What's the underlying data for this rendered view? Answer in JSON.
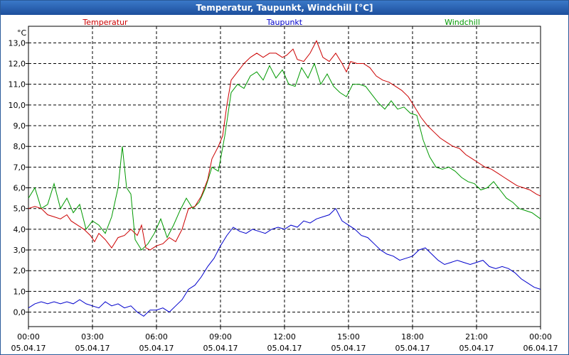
{
  "chart_data": {
    "type": "line",
    "title": "Temperatur, Taupunkt, Windchill [°C]",
    "ylabel": "°C",
    "ylim": [
      -0.7,
      13.8
    ],
    "xlim": [
      0,
      24
    ],
    "grid": true,
    "y_ticks": [
      "0,0",
      "1,0",
      "2,0",
      "3,0",
      "4,0",
      "5,0",
      "6,0",
      "7,0",
      "8,0",
      "9,0",
      "10,0",
      "11,0",
      "12,0",
      "13,0"
    ],
    "x_ticks": [
      {
        "time": "00:00",
        "date": "05.04.17"
      },
      {
        "time": "03:00",
        "date": "05.04.17"
      },
      {
        "time": "06:00",
        "date": "05.04.17"
      },
      {
        "time": "09:00",
        "date": "05.04.17"
      },
      {
        "time": "12:00",
        "date": "05.04.17"
      },
      {
        "time": "15:00",
        "date": "05.04.17"
      },
      {
        "time": "18:00",
        "date": "05.04.17"
      },
      {
        "time": "21:00",
        "date": "05.04.17"
      },
      {
        "time": "00:00",
        "date": "06.04.17"
      }
    ],
    "series": [
      {
        "name": "Temperatur",
        "color": "#cc0000",
        "points": [
          [
            0,
            5.0
          ],
          [
            0.3,
            5.1
          ],
          [
            0.6,
            5.0
          ],
          [
            0.9,
            4.7
          ],
          [
            1.2,
            4.6
          ],
          [
            1.5,
            4.5
          ],
          [
            1.8,
            4.7
          ],
          [
            2.0,
            4.4
          ],
          [
            2.3,
            4.2
          ],
          [
            2.6,
            4.0
          ],
          [
            2.9,
            3.7
          ],
          [
            3.1,
            3.4
          ],
          [
            3.3,
            3.8
          ],
          [
            3.6,
            3.5
          ],
          [
            3.9,
            3.1
          ],
          [
            4.2,
            3.6
          ],
          [
            4.5,
            3.7
          ],
          [
            4.8,
            4.0
          ],
          [
            5.1,
            3.7
          ],
          [
            5.3,
            4.2
          ],
          [
            5.5,
            3.1
          ],
          [
            5.7,
            3.0
          ],
          [
            6.0,
            3.2
          ],
          [
            6.3,
            3.3
          ],
          [
            6.6,
            3.6
          ],
          [
            6.9,
            3.4
          ],
          [
            7.2,
            4.0
          ],
          [
            7.5,
            5.0
          ],
          [
            7.8,
            5.1
          ],
          [
            8.1,
            5.6
          ],
          [
            8.4,
            6.4
          ],
          [
            8.6,
            7.4
          ],
          [
            8.9,
            8.0
          ],
          [
            9.1,
            8.5
          ],
          [
            9.3,
            10.0
          ],
          [
            9.5,
            11.2
          ],
          [
            9.8,
            11.6
          ],
          [
            10.1,
            12.0
          ],
          [
            10.4,
            12.3
          ],
          [
            10.7,
            12.5
          ],
          [
            11.0,
            12.3
          ],
          [
            11.3,
            12.5
          ],
          [
            11.6,
            12.5
          ],
          [
            11.9,
            12.3
          ],
          [
            12.1,
            12.4
          ],
          [
            12.4,
            12.7
          ],
          [
            12.6,
            12.2
          ],
          [
            12.9,
            12.1
          ],
          [
            13.2,
            12.5
          ],
          [
            13.5,
            13.1
          ],
          [
            13.8,
            12.3
          ],
          [
            14.1,
            12.1
          ],
          [
            14.4,
            12.5
          ],
          [
            14.7,
            12.0
          ],
          [
            14.9,
            11.6
          ],
          [
            15.1,
            12.1
          ],
          [
            15.4,
            12.0
          ],
          [
            15.7,
            12.0
          ],
          [
            16.0,
            11.8
          ],
          [
            16.3,
            11.4
          ],
          [
            16.6,
            11.2
          ],
          [
            16.9,
            11.1
          ],
          [
            17.2,
            10.9
          ],
          [
            17.5,
            10.7
          ],
          [
            17.8,
            10.4
          ],
          [
            18.1,
            9.9
          ],
          [
            18.4,
            9.4
          ],
          [
            18.7,
            9.0
          ],
          [
            19.0,
            8.7
          ],
          [
            19.3,
            8.4
          ],
          [
            19.6,
            8.2
          ],
          [
            19.9,
            8.0
          ],
          [
            20.2,
            7.9
          ],
          [
            20.5,
            7.6
          ],
          [
            20.8,
            7.4
          ],
          [
            21.1,
            7.2
          ],
          [
            21.4,
            7.0
          ],
          [
            21.7,
            6.9
          ],
          [
            22.0,
            6.7
          ],
          [
            22.3,
            6.5
          ],
          [
            22.6,
            6.3
          ],
          [
            22.9,
            6.1
          ],
          [
            23.2,
            6.0
          ],
          [
            23.5,
            5.9
          ],
          [
            23.8,
            5.7
          ],
          [
            24.0,
            5.6
          ]
        ]
      },
      {
        "name": "Taupunkt",
        "color": "#0000cc",
        "points": [
          [
            0,
            0.2
          ],
          [
            0.3,
            0.4
          ],
          [
            0.6,
            0.5
          ],
          [
            0.9,
            0.4
          ],
          [
            1.2,
            0.5
          ],
          [
            1.5,
            0.4
          ],
          [
            1.8,
            0.5
          ],
          [
            2.1,
            0.4
          ],
          [
            2.4,
            0.6
          ],
          [
            2.7,
            0.4
          ],
          [
            3.0,
            0.3
          ],
          [
            3.3,
            0.2
          ],
          [
            3.6,
            0.5
          ],
          [
            3.9,
            0.3
          ],
          [
            4.2,
            0.4
          ],
          [
            4.5,
            0.2
          ],
          [
            4.8,
            0.3
          ],
          [
            5.1,
            0.0
          ],
          [
            5.4,
            -0.2
          ],
          [
            5.7,
            0.1
          ],
          [
            6.0,
            0.1
          ],
          [
            6.3,
            0.2
          ],
          [
            6.6,
            0.0
          ],
          [
            6.9,
            0.3
          ],
          [
            7.2,
            0.6
          ],
          [
            7.5,
            1.1
          ],
          [
            7.8,
            1.3
          ],
          [
            8.1,
            1.7
          ],
          [
            8.4,
            2.2
          ],
          [
            8.7,
            2.6
          ],
          [
            9.0,
            3.2
          ],
          [
            9.3,
            3.7
          ],
          [
            9.6,
            4.1
          ],
          [
            9.9,
            3.9
          ],
          [
            10.2,
            3.8
          ],
          [
            10.5,
            4.0
          ],
          [
            10.8,
            3.9
          ],
          [
            11.1,
            3.8
          ],
          [
            11.4,
            4.0
          ],
          [
            11.7,
            4.1
          ],
          [
            12.0,
            4.0
          ],
          [
            12.3,
            4.2
          ],
          [
            12.6,
            4.1
          ],
          [
            12.9,
            4.4
          ],
          [
            13.2,
            4.3
          ],
          [
            13.5,
            4.5
          ],
          [
            13.8,
            4.6
          ],
          [
            14.1,
            4.7
          ],
          [
            14.4,
            5.0
          ],
          [
            14.7,
            4.4
          ],
          [
            15.0,
            4.2
          ],
          [
            15.3,
            4.0
          ],
          [
            15.6,
            3.7
          ],
          [
            15.9,
            3.6
          ],
          [
            16.2,
            3.3
          ],
          [
            16.5,
            3.0
          ],
          [
            16.8,
            2.8
          ],
          [
            17.1,
            2.7
          ],
          [
            17.4,
            2.5
          ],
          [
            17.7,
            2.6
          ],
          [
            18.0,
            2.7
          ],
          [
            18.3,
            3.0
          ],
          [
            18.6,
            3.1
          ],
          [
            18.9,
            2.8
          ],
          [
            19.2,
            2.5
          ],
          [
            19.5,
            2.3
          ],
          [
            19.8,
            2.4
          ],
          [
            20.1,
            2.5
          ],
          [
            20.4,
            2.4
          ],
          [
            20.7,
            2.3
          ],
          [
            21.0,
            2.4
          ],
          [
            21.3,
            2.5
          ],
          [
            21.6,
            2.2
          ],
          [
            21.9,
            2.1
          ],
          [
            22.2,
            2.2
          ],
          [
            22.5,
            2.1
          ],
          [
            22.8,
            1.9
          ],
          [
            23.1,
            1.6
          ],
          [
            23.4,
            1.4
          ],
          [
            23.7,
            1.2
          ],
          [
            24.0,
            1.1
          ]
        ]
      },
      {
        "name": "Windchill",
        "color": "#009900",
        "points": [
          [
            0,
            5.5
          ],
          [
            0.3,
            6.0
          ],
          [
            0.6,
            5.0
          ],
          [
            0.9,
            5.2
          ],
          [
            1.2,
            6.2
          ],
          [
            1.5,
            5.0
          ],
          [
            1.8,
            5.5
          ],
          [
            2.1,
            4.8
          ],
          [
            2.4,
            5.2
          ],
          [
            2.7,
            4.0
          ],
          [
            3.0,
            4.4
          ],
          [
            3.3,
            4.2
          ],
          [
            3.6,
            3.8
          ],
          [
            3.9,
            4.6
          ],
          [
            4.2,
            6.0
          ],
          [
            4.4,
            8.0
          ],
          [
            4.6,
            6.0
          ],
          [
            4.8,
            5.7
          ],
          [
            5.0,
            3.5
          ],
          [
            5.3,
            3.0
          ],
          [
            5.6,
            3.3
          ],
          [
            5.9,
            3.8
          ],
          [
            6.2,
            4.5
          ],
          [
            6.5,
            3.6
          ],
          [
            6.8,
            4.2
          ],
          [
            7.1,
            4.9
          ],
          [
            7.4,
            5.5
          ],
          [
            7.7,
            5.0
          ],
          [
            8.0,
            5.3
          ],
          [
            8.3,
            6.0
          ],
          [
            8.6,
            7.0
          ],
          [
            8.9,
            6.8
          ],
          [
            9.2,
            8.5
          ],
          [
            9.5,
            10.6
          ],
          [
            9.8,
            11.0
          ],
          [
            10.1,
            10.8
          ],
          [
            10.4,
            11.4
          ],
          [
            10.7,
            11.6
          ],
          [
            11.0,
            11.2
          ],
          [
            11.3,
            11.9
          ],
          [
            11.6,
            11.3
          ],
          [
            11.9,
            11.7
          ],
          [
            12.2,
            11.0
          ],
          [
            12.5,
            10.9
          ],
          [
            12.8,
            11.8
          ],
          [
            13.1,
            11.3
          ],
          [
            13.4,
            12.0
          ],
          [
            13.7,
            11.0
          ],
          [
            14.0,
            11.5
          ],
          [
            14.3,
            10.9
          ],
          [
            14.6,
            10.6
          ],
          [
            14.9,
            10.4
          ],
          [
            15.2,
            11.0
          ],
          [
            15.5,
            11.0
          ],
          [
            15.8,
            10.9
          ],
          [
            16.1,
            10.5
          ],
          [
            16.4,
            10.1
          ],
          [
            16.7,
            9.8
          ],
          [
            17.0,
            10.2
          ],
          [
            17.3,
            9.8
          ],
          [
            17.6,
            9.9
          ],
          [
            17.9,
            9.6
          ],
          [
            18.2,
            9.5
          ],
          [
            18.5,
            8.3
          ],
          [
            18.8,
            7.5
          ],
          [
            19.1,
            7.0
          ],
          [
            19.4,
            6.9
          ],
          [
            19.7,
            7.0
          ],
          [
            20.0,
            6.8
          ],
          [
            20.3,
            6.5
          ],
          [
            20.6,
            6.3
          ],
          [
            20.9,
            6.2
          ],
          [
            21.2,
            5.9
          ],
          [
            21.5,
            6.0
          ],
          [
            21.8,
            6.3
          ],
          [
            22.1,
            5.9
          ],
          [
            22.4,
            5.5
          ],
          [
            22.7,
            5.3
          ],
          [
            23.0,
            5.0
          ],
          [
            23.3,
            4.9
          ],
          [
            23.6,
            4.8
          ],
          [
            24.0,
            4.5
          ]
        ]
      }
    ]
  }
}
